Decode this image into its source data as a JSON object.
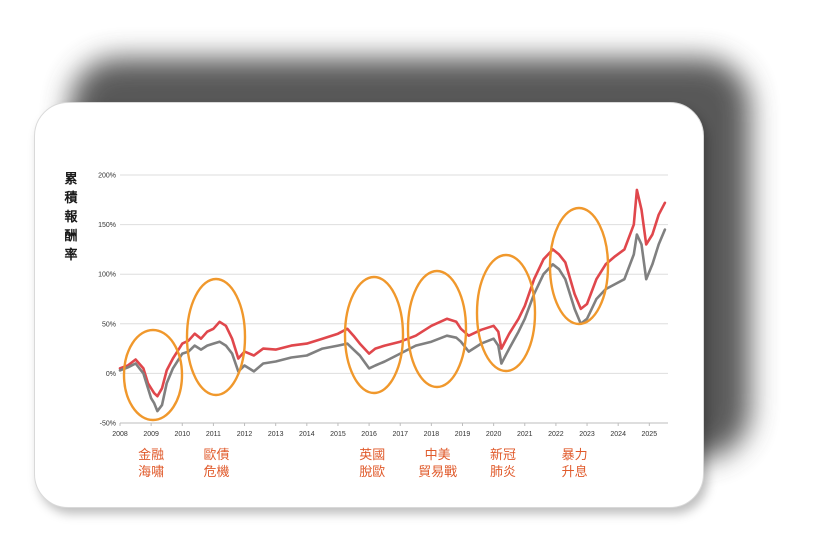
{
  "chart_data": {
    "type": "line",
    "ylabel": "累積報酬率",
    "ylim": [
      -50,
      200
    ],
    "yticks": [
      "-50%",
      "0%",
      "50%",
      "100%",
      "150%",
      "200%"
    ],
    "ytick_values": [
      -50,
      0,
      50,
      100,
      150,
      200
    ],
    "xlim": [
      2008,
      2025.6
    ],
    "xticks": [
      "2008",
      "2009",
      "2010",
      "2011",
      "2012",
      "2013",
      "2014",
      "2015",
      "2016",
      "2017",
      "2018",
      "2019",
      "2020",
      "2021",
      "2022",
      "2023",
      "2024",
      "2025"
    ],
    "grid": "horizontal",
    "colors": [
      "#e0474c",
      "#808080"
    ],
    "series": [
      {
        "color": "#e0474c",
        "x": [
          2008.0,
          2008.25,
          2008.5,
          2008.75,
          2008.9,
          2009.0,
          2009.1,
          2009.2,
          2009.35,
          2009.5,
          2009.7,
          2009.9,
          2010.0,
          2010.2,
          2010.4,
          2010.6,
          2010.8,
          2011.0,
          2011.2,
          2011.4,
          2011.6,
          2011.8,
          2012.0,
          2012.3,
          2012.6,
          2013.0,
          2013.5,
          2014.0,
          2014.5,
          2015.0,
          2015.3,
          2015.5,
          2015.7,
          2016.0,
          2016.2,
          2016.5,
          2017.0,
          2017.5,
          2018.0,
          2018.5,
          2018.8,
          2018.95,
          2019.2,
          2019.6,
          2020.0,
          2020.15,
          2020.25,
          2020.5,
          2020.8,
          2021.0,
          2021.3,
          2021.6,
          2021.9,
          2022.1,
          2022.3,
          2022.6,
          2022.8,
          2023.0,
          2023.3,
          2023.6,
          2023.9,
          2024.2,
          2024.5,
          2024.6,
          2024.75,
          2024.9,
          2025.1,
          2025.3,
          2025.5
        ],
        "y": [
          5,
          8,
          14,
          5,
          -10,
          -15,
          -20,
          -23,
          -15,
          3,
          15,
          25,
          30,
          33,
          40,
          35,
          42,
          45,
          52,
          48,
          35,
          15,
          22,
          18,
          25,
          24,
          28,
          30,
          35,
          40,
          45,
          38,
          30,
          20,
          25,
          28,
          32,
          38,
          48,
          55,
          52,
          45,
          38,
          44,
          48,
          42,
          25,
          40,
          55,
          68,
          95,
          115,
          125,
          120,
          112,
          80,
          65,
          70,
          95,
          110,
          118,
          125,
          150,
          185,
          165,
          130,
          140,
          160,
          172
        ]
      },
      {
        "color": "#808080",
        "x": [
          2008.0,
          2008.25,
          2008.5,
          2008.75,
          2008.9,
          2009.0,
          2009.1,
          2009.2,
          2009.35,
          2009.5,
          2009.7,
          2009.9,
          2010.0,
          2010.2,
          2010.4,
          2010.6,
          2010.8,
          2011.0,
          2011.2,
          2011.4,
          2011.6,
          2011.8,
          2012.0,
          2012.3,
          2012.6,
          2013.0,
          2013.5,
          2014.0,
          2014.5,
          2015.0,
          2015.3,
          2015.5,
          2015.7,
          2016.0,
          2016.2,
          2016.5,
          2017.0,
          2017.5,
          2018.0,
          2018.5,
          2018.8,
          2018.95,
          2019.2,
          2019.6,
          2020.0,
          2020.15,
          2020.25,
          2020.5,
          2020.8,
          2021.0,
          2021.3,
          2021.6,
          2021.9,
          2022.1,
          2022.3,
          2022.6,
          2022.8,
          2023.0,
          2023.3,
          2023.6,
          2023.9,
          2024.2,
          2024.5,
          2024.6,
          2024.75,
          2024.9,
          2025.1,
          2025.3,
          2025.5
        ],
        "y": [
          3,
          6,
          10,
          0,
          -15,
          -25,
          -30,
          -38,
          -32,
          -10,
          5,
          15,
          20,
          22,
          28,
          24,
          28,
          30,
          32,
          28,
          20,
          2,
          8,
          2,
          10,
          12,
          16,
          18,
          25,
          28,
          30,
          24,
          18,
          5,
          8,
          12,
          20,
          28,
          32,
          38,
          36,
          32,
          22,
          30,
          35,
          28,
          10,
          25,
          42,
          55,
          80,
          100,
          110,
          105,
          95,
          65,
          50,
          55,
          75,
          85,
          90,
          95,
          120,
          140,
          130,
          95,
          110,
          130,
          145
        ]
      }
    ],
    "annotations": [
      {
        "line1": "金融",
        "line2": "海嘯",
        "x": 2009.0
      },
      {
        "line1": "歐債",
        "line2": "危機",
        "x": 2011.1
      },
      {
        "line1": "英國",
        "line2": "脫歐",
        "x": 2016.1
      },
      {
        "line1": "中美",
        "line2": "貿易戰",
        "x": 2018.2
      },
      {
        "line1": "新冠",
        "line2": "肺炎",
        "x": 2020.3
      },
      {
        "line1": "暴力",
        "line2": "升息",
        "x": 2022.6
      }
    ],
    "highlight_color": "#f0982c",
    "label_color": "#e05a2b"
  }
}
